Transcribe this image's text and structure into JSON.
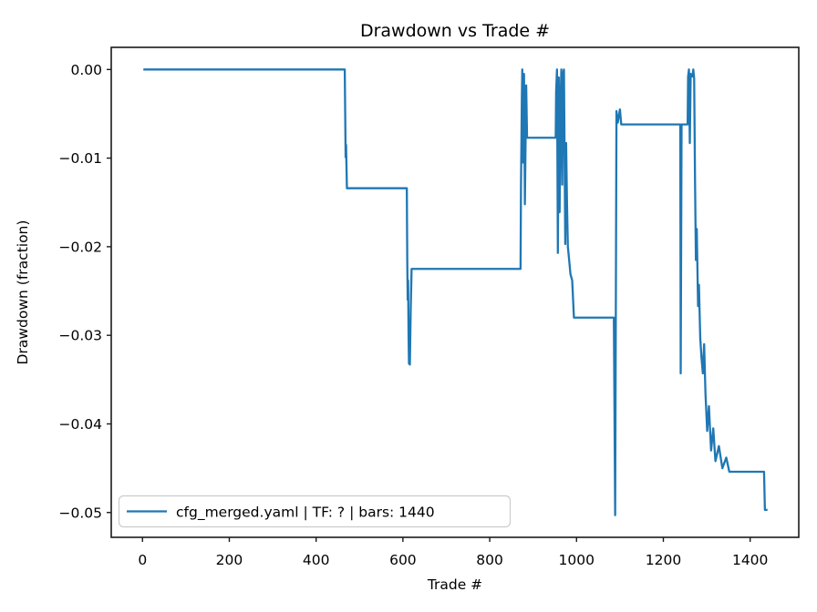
{
  "figure": {
    "title": "Drawdown vs Trade #",
    "xlabel": "Trade #",
    "ylabel": "Drawdown (fraction)",
    "legend": {
      "label": "cfg_merged.yaml | TF: ? | bars: 1440",
      "line_color": "#1f77b4"
    }
  },
  "chart_data": {
    "type": "line",
    "title": "Drawdown vs Trade #",
    "xlabel": "Trade #",
    "ylabel": "Drawdown (fraction)",
    "grid": false,
    "legend_position": "lower left",
    "line_color": "#1f77b4",
    "xlim": [
      -72,
      1512
    ],
    "ylim": [
      -0.0528,
      0.0025
    ],
    "xticks": [
      0,
      200,
      400,
      600,
      800,
      1000,
      1200,
      1400
    ],
    "xtick_labels": [
      "0",
      "200",
      "400",
      "600",
      "800",
      "1000",
      "1200",
      "1400"
    ],
    "yticks": [
      0,
      -0.01,
      -0.02,
      -0.03,
      -0.04,
      -0.05
    ],
    "ytick_labels": [
      "0.00",
      "−0.01",
      "−0.02",
      "−0.03",
      "−0.04",
      "−0.05"
    ],
    "series": [
      {
        "name": "cfg_merged.yaml | TF: ? | bars: 1440",
        "points": [
          [
            2,
            0
          ],
          [
            466,
            0
          ],
          [
            467,
            -0.005
          ],
          [
            468,
            -0.0099
          ],
          [
            469,
            -0.0085
          ],
          [
            471,
            -0.0134
          ],
          [
            609,
            -0.0134
          ],
          [
            610,
            -0.0215
          ],
          [
            611,
            -0.026
          ],
          [
            612,
            -0.0238
          ],
          [
            613,
            -0.03
          ],
          [
            614,
            -0.0332
          ],
          [
            615,
            -0.029
          ],
          [
            616,
            -0.0333
          ],
          [
            618,
            -0.027
          ],
          [
            620,
            -0.0225
          ],
          [
            871,
            -0.0225
          ],
          [
            872,
            -0.0134
          ],
          [
            874,
            -0.0033
          ],
          [
            875,
            0
          ],
          [
            877,
            -0.0105
          ],
          [
            879,
            -0.0005
          ],
          [
            881,
            -0.0152
          ],
          [
            884,
            -0.0018
          ],
          [
            886,
            -0.0077
          ],
          [
            952,
            -0.0077
          ],
          [
            953,
            -0.0025
          ],
          [
            955,
            0
          ],
          [
            957,
            -0.0207
          ],
          [
            959,
            -0.0009
          ],
          [
            961,
            -0.0161
          ],
          [
            963,
            -0.004
          ],
          [
            965,
            0
          ],
          [
            967,
            -0.013
          ],
          [
            969,
            -0.0005
          ],
          [
            971,
            0
          ],
          [
            974,
            -0.0197
          ],
          [
            976,
            -0.0083
          ],
          [
            978,
            -0.015
          ],
          [
            980,
            -0.02
          ],
          [
            983,
            -0.0215
          ],
          [
            986,
            -0.0231
          ],
          [
            990,
            -0.0238
          ],
          [
            994,
            -0.028
          ],
          [
            1086,
            -0.028
          ],
          [
            1089,
            -0.0503
          ],
          [
            1092,
            -0.0047
          ],
          [
            1095,
            -0.006
          ],
          [
            1100,
            -0.0045
          ],
          [
            1103,
            -0.0062
          ],
          [
            1239,
            -0.0062
          ],
          [
            1240,
            -0.0343
          ],
          [
            1242,
            -0.0062
          ],
          [
            1256,
            -0.0062
          ],
          [
            1257,
            -0.0008
          ],
          [
            1259,
            0
          ],
          [
            1261,
            -0.0083
          ],
          [
            1263,
            -0.0005
          ],
          [
            1267,
            -0.0008
          ],
          [
            1269,
            0
          ],
          [
            1271,
            -0.001
          ],
          [
            1273,
            -0.0125
          ],
          [
            1275,
            -0.0215
          ],
          [
            1277,
            -0.018
          ],
          [
            1280,
            -0.0267
          ],
          [
            1282,
            -0.0243
          ],
          [
            1285,
            -0.0303
          ],
          [
            1288,
            -0.0326
          ],
          [
            1291,
            -0.0343
          ],
          [
            1294,
            -0.031
          ],
          [
            1297,
            -0.0365
          ],
          [
            1301,
            -0.0408
          ],
          [
            1305,
            -0.038
          ],
          [
            1310,
            -0.043
          ],
          [
            1315,
            -0.0405
          ],
          [
            1320,
            -0.0442
          ],
          [
            1328,
            -0.0425
          ],
          [
            1336,
            -0.045
          ],
          [
            1345,
            -0.0438
          ],
          [
            1352,
            -0.0454
          ],
          [
            1432,
            -0.0454
          ],
          [
            1434,
            -0.0497
          ],
          [
            1440,
            -0.0497
          ]
        ]
      }
    ]
  }
}
